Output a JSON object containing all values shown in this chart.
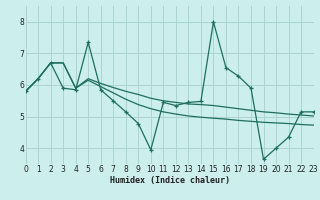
{
  "xlabel": "Humidex (Indice chaleur)",
  "background_color": "#cceeed",
  "grid_color": "#aad4d2",
  "line_color": "#1e6e60",
  "xlim": [
    0,
    23
  ],
  "ylim": [
    3.5,
    8.5
  ],
  "yticks": [
    4,
    5,
    6,
    7,
    8
  ],
  "xtick_labels": [
    "0",
    "1",
    "2",
    "3",
    "4",
    "5",
    "6",
    "7",
    "8",
    "9",
    "10",
    "11",
    "12",
    "13",
    "14",
    "15",
    "16",
    "17",
    "18",
    "19",
    "20",
    "21",
    "22",
    "23"
  ],
  "xticks": [
    0,
    1,
    2,
    3,
    4,
    5,
    6,
    7,
    8,
    9,
    10,
    11,
    12,
    13,
    14,
    15,
    16,
    17,
    18,
    19,
    20,
    21,
    22,
    23
  ],
  "line1_x": [
    0,
    1,
    2,
    3,
    4,
    5,
    6,
    7,
    8,
    9,
    10,
    11,
    12,
    13,
    14,
    15,
    16,
    17,
    18,
    19,
    20,
    21,
    22,
    23
  ],
  "line1_y": [
    5.8,
    6.2,
    6.7,
    6.7,
    5.9,
    6.2,
    6.05,
    5.92,
    5.8,
    5.7,
    5.58,
    5.5,
    5.45,
    5.4,
    5.38,
    5.35,
    5.3,
    5.25,
    5.2,
    5.15,
    5.12,
    5.08,
    5.05,
    5.02
  ],
  "line2_x": [
    0,
    1,
    2,
    3,
    4,
    5,
    6,
    7,
    8,
    9,
    10,
    11,
    12,
    13,
    14,
    15,
    16,
    17,
    18,
    19,
    20,
    21,
    22,
    23
  ],
  "line2_y": [
    5.8,
    6.2,
    6.7,
    6.7,
    5.9,
    6.15,
    5.95,
    5.75,
    5.55,
    5.38,
    5.25,
    5.15,
    5.08,
    5.02,
    4.98,
    4.95,
    4.92,
    4.88,
    4.85,
    4.82,
    4.8,
    4.78,
    4.75,
    4.73
  ],
  "line3_x": [
    0,
    1,
    2,
    3,
    4,
    5,
    6,
    7,
    8,
    9,
    10,
    11,
    12,
    13,
    14,
    15,
    16,
    17,
    18,
    19,
    20,
    21,
    22,
    23
  ],
  "line3_y": [
    5.8,
    6.2,
    6.7,
    5.9,
    5.85,
    7.35,
    5.85,
    5.5,
    5.15,
    4.78,
    3.95,
    5.45,
    5.35,
    5.45,
    5.48,
    8.0,
    6.55,
    6.28,
    5.9,
    3.65,
    4.0,
    4.35,
    5.15,
    5.15
  ]
}
